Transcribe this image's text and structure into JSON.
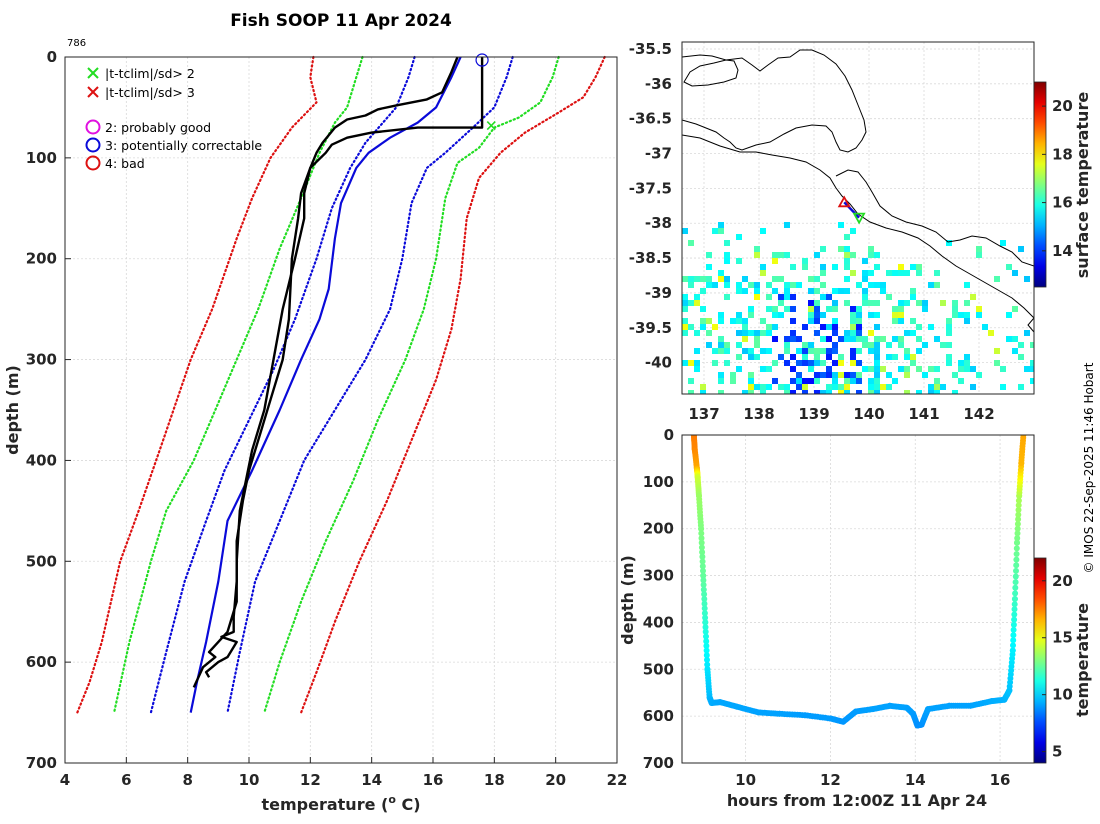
{
  "header": {
    "title": "Fish SOOP 11 Apr 2024",
    "profile_id": "786"
  },
  "credit": "© IMOS 22-Sep-2025 11:46 Hobart",
  "colors": {
    "profile": "#000000",
    "clim_mean": "#0a0ad9",
    "sd2": "#22dd22",
    "sd3": "#dd1111",
    "dotted_blue": "#0a0ad9"
  },
  "legend": {
    "x_green": "|t-tclim|/sd> 2",
    "x_red": "|t-tclim|/sd> 3",
    "q2": "2: probably good",
    "q3": "3: potentially correctable",
    "q4": "4: bad"
  },
  "chart_data": [
    {
      "type": "line",
      "id": "profile",
      "title": "Fish SOOP 11 Apr 2024",
      "xlabel": "temperature (o C)",
      "xlabel_base": "temperature (",
      "xlabel_sup": "o",
      "xlabel_tail": " C)",
      "ylabel": "depth (m)",
      "xlim": [
        4,
        22
      ],
      "ylim": [
        0,
        700
      ],
      "y_reversed": true,
      "x_ticks": [
        "4",
        "6",
        "8",
        "10",
        "12",
        "14",
        "16",
        "18",
        "20",
        "22"
      ],
      "y_ticks": [
        "0",
        "100",
        "200",
        "300",
        "400",
        "500",
        "600",
        "700"
      ],
      "series": [
        {
          "name": "sd3 lower",
          "style": "dotted",
          "color": "#dd1111",
          "points": [
            [
              12.1,
              0
            ],
            [
              12.0,
              20
            ],
            [
              12.2,
              45
            ],
            [
              11.4,
              70
            ],
            [
              10.7,
              100
            ],
            [
              10.1,
              140
            ],
            [
              9.6,
              180
            ],
            [
              8.8,
              250
            ],
            [
              8.1,
              300
            ],
            [
              7.2,
              380
            ],
            [
              6.4,
              450
            ],
            [
              5.8,
              500
            ],
            [
              5.2,
              580
            ],
            [
              4.8,
              620
            ],
            [
              4.4,
              650
            ]
          ]
        },
        {
          "name": "sd2 lower",
          "style": "dotted",
          "color": "#22dd22",
          "points": [
            [
              13.7,
              0
            ],
            [
              13.5,
              20
            ],
            [
              13.2,
              50
            ],
            [
              12.8,
              65
            ],
            [
              12.3,
              95
            ],
            [
              11.7,
              140
            ],
            [
              11.0,
              190
            ],
            [
              10.3,
              250
            ],
            [
              9.6,
              300
            ],
            [
              8.9,
              350
            ],
            [
              8.2,
              400
            ],
            [
              7.3,
              450
            ],
            [
              6.8,
              500
            ],
            [
              6.1,
              580
            ],
            [
              5.6,
              650
            ]
          ]
        },
        {
          "name": "sd1 lower",
          "style": "dotted",
          "color": "#0a0ad9",
          "points": [
            [
              15.4,
              0
            ],
            [
              15.2,
              20
            ],
            [
              14.8,
              50
            ],
            [
              13.8,
              85
            ],
            [
              13.3,
              110
            ],
            [
              12.7,
              150
            ],
            [
              12.2,
              200
            ],
            [
              11.5,
              260
            ],
            [
              10.8,
              310
            ],
            [
              10.0,
              360
            ],
            [
              9.2,
              410
            ],
            [
              8.6,
              460
            ],
            [
              7.9,
              520
            ],
            [
              7.3,
              590
            ],
            [
              6.8,
              650
            ]
          ]
        },
        {
          "name": "sd1 upper",
          "style": "dotted",
          "color": "#0a0ad9",
          "points": [
            [
              18.6,
              0
            ],
            [
              18.4,
              20
            ],
            [
              18.0,
              50
            ],
            [
              17.3,
              70
            ],
            [
              16.4,
              95
            ],
            [
              15.8,
              110
            ],
            [
              15.3,
              145
            ],
            [
              15.0,
              200
            ],
            [
              14.6,
              250
            ],
            [
              13.8,
              300
            ],
            [
              12.8,
              350
            ],
            [
              11.8,
              400
            ],
            [
              11.0,
              460
            ],
            [
              10.2,
              520
            ],
            [
              9.7,
              590
            ],
            [
              9.3,
              650
            ]
          ]
        },
        {
          "name": "sd2 upper",
          "style": "dotted",
          "color": "#22dd22",
          "points": [
            [
              20.1,
              0
            ],
            [
              19.9,
              20
            ],
            [
              19.5,
              45
            ],
            [
              18.8,
              60
            ],
            [
              18.0,
              70
            ],
            [
              17.5,
              90
            ],
            [
              16.8,
              105
            ],
            [
              16.4,
              140
            ],
            [
              16.1,
              200
            ],
            [
              15.7,
              250
            ],
            [
              15.1,
              300
            ],
            [
              14.2,
              360
            ],
            [
              13.4,
              420
            ],
            [
              12.5,
              480
            ],
            [
              11.7,
              540
            ],
            [
              11.0,
              600
            ],
            [
              10.5,
              650
            ]
          ]
        },
        {
          "name": "sd3 upper",
          "style": "dotted",
          "color": "#dd1111",
          "points": [
            [
              21.6,
              0
            ],
            [
              21.3,
              20
            ],
            [
              20.9,
              40
            ],
            [
              20.1,
              55
            ],
            [
              19.0,
              75
            ],
            [
              18.2,
              95
            ],
            [
              17.5,
              120
            ],
            [
              17.1,
              160
            ],
            [
              16.9,
              220
            ],
            [
              16.6,
              270
            ],
            [
              16.1,
              320
            ],
            [
              15.3,
              380
            ],
            [
              14.5,
              440
            ],
            [
              13.6,
              500
            ],
            [
              12.8,
              560
            ],
            [
              12.2,
              610
            ],
            [
              11.7,
              650
            ]
          ]
        },
        {
          "name": "climatology mean",
          "style": "solid",
          "color": "#0a0ad9",
          "width": 2.2,
          "points": [
            [
              16.9,
              0
            ],
            [
              16.6,
              20
            ],
            [
              16.1,
              50
            ],
            [
              15.5,
              65
            ],
            [
              14.6,
              80
            ],
            [
              13.9,
              95
            ],
            [
              13.5,
              110
            ],
            [
              13.0,
              145
            ],
            [
              12.8,
              180
            ],
            [
              12.6,
              230
            ],
            [
              12.3,
              260
            ],
            [
              11.7,
              300
            ],
            [
              11.0,
              350
            ],
            [
              10.1,
              410
            ],
            [
              9.3,
              460
            ],
            [
              9.0,
              520
            ],
            [
              8.6,
              580
            ],
            [
              8.3,
              620
            ],
            [
              8.1,
              650
            ]
          ]
        },
        {
          "name": "profile down",
          "style": "solid",
          "color": "#000000",
          "width": 2.4,
          "points": [
            [
              17.6,
              0
            ],
            [
              17.6,
              10
            ],
            [
              17.6,
              40
            ],
            [
              17.6,
              70
            ],
            [
              15.5,
              70
            ],
            [
              14.0,
              75
            ],
            [
              13.2,
              80
            ],
            [
              12.7,
              87
            ],
            [
              12.5,
              95
            ],
            [
              12.0,
              110
            ],
            [
              11.7,
              135
            ],
            [
              11.6,
              160
            ],
            [
              11.4,
              200
            ],
            [
              11.3,
              260
            ],
            [
              11.1,
              300
            ],
            [
              10.8,
              330
            ],
            [
              10.4,
              370
            ],
            [
              10.0,
              410
            ],
            [
              9.8,
              440
            ],
            [
              9.6,
              480
            ],
            [
              9.6,
              520
            ],
            [
              9.5,
              555
            ],
            [
              9.5,
              570
            ],
            [
              9.1,
              575
            ],
            [
              9.6,
              580
            ],
            [
              9.3,
              595
            ],
            [
              9.0,
              600
            ],
            [
              8.6,
              610
            ],
            [
              8.7,
              615
            ]
          ]
        },
        {
          "name": "profile up",
          "style": "solid",
          "color": "#000000",
          "width": 2.4,
          "points": [
            [
              16.8,
              0
            ],
            [
              16.6,
              15
            ],
            [
              16.3,
              35
            ],
            [
              15.8,
              42
            ],
            [
              14.8,
              48
            ],
            [
              14.2,
              52
            ],
            [
              13.8,
              58
            ],
            [
              13.2,
              62
            ],
            [
              12.8,
              70
            ],
            [
              12.4,
              85
            ],
            [
              12.2,
              95
            ],
            [
              12.0,
              110
            ],
            [
              11.8,
              135
            ],
            [
              11.8,
              160
            ],
            [
              11.5,
              200
            ],
            [
              11.1,
              250
            ],
            [
              10.8,
              300
            ],
            [
              10.5,
              350
            ],
            [
              10.1,
              390
            ],
            [
              9.9,
              420
            ],
            [
              9.7,
              450
            ],
            [
              9.6,
              500
            ],
            [
              9.6,
              540
            ],
            [
              9.3,
              570
            ],
            [
              8.7,
              590
            ],
            [
              8.9,
              595
            ],
            [
              8.5,
              605
            ],
            [
              8.2,
              625
            ]
          ]
        }
      ],
      "markers": [
        {
          "label": "3: potentially correctable",
          "x": 17.6,
          "y": 3,
          "shape": "circle",
          "color": "#0a0ad9"
        },
        {
          "label": "|t-tclim|/sd> 2",
          "x": 17.9,
          "y": 68,
          "shape": "x",
          "color": "#22dd22"
        }
      ]
    },
    {
      "type": "heatmap",
      "id": "map",
      "colorbar_label": "surface temperature",
      "clim": [
        12.5,
        21
      ],
      "colorbar_ticks": [
        "14",
        "16",
        "18",
        "20"
      ],
      "colorbar_tick_values": [
        14,
        16,
        18,
        20
      ],
      "xlim": [
        136.6,
        143.0
      ],
      "ylim": [
        -40.45,
        -35.4
      ],
      "x_ticks": [
        "137",
        "138",
        "139",
        "140",
        "141",
        "142"
      ],
      "x_tick_values": [
        137,
        138,
        139,
        140,
        141,
        142
      ],
      "y_ticks": [
        "-35.5",
        "-36",
        "-36.5",
        "-37",
        "-37.5",
        "-38",
        "-38.5",
        "-39",
        "-39.5",
        "-40"
      ],
      "y_tick_values": [
        -35.5,
        -36,
        -36.5,
        -37,
        -37.5,
        -38,
        -38.5,
        -39,
        -39.5,
        -40
      ],
      "track_start": {
        "lon": 139.55,
        "lat": -37.7,
        "shape": "triangle-up",
        "color": "#dd1111"
      },
      "track_end": {
        "lon": 139.82,
        "lat": -37.92,
        "shape": "triangle-down",
        "color": "#22dd22"
      }
    },
    {
      "type": "scatter",
      "id": "depth_time",
      "xlabel": "hours from 12:00Z 11 Apr 24",
      "ylabel": "depth (m)",
      "colorbar_label": "temperature",
      "clim": [
        4,
        22
      ],
      "xlim": [
        8.5,
        16.8
      ],
      "ylim": [
        0,
        700
      ],
      "x_ticks": [
        "10",
        "12",
        "14",
        "16"
      ],
      "x_tick_values": [
        10,
        12,
        14,
        16
      ],
      "y_ticks": [
        "0",
        "100",
        "200",
        "300",
        "400",
        "500",
        "600",
        "700"
      ],
      "colorbar_ticks": [
        "5",
        "10",
        "15",
        "20"
      ],
      "colorbar_tick_values": [
        5,
        10,
        15,
        20
      ],
      "path": [
        [
          8.78,
          0,
          17.6
        ],
        [
          8.8,
          30,
          17.4
        ],
        [
          8.85,
          70,
          16.8
        ],
        [
          8.87,
          90,
          14.5
        ],
        [
          8.9,
          130,
          13.5
        ],
        [
          8.95,
          200,
          13.0
        ],
        [
          9.0,
          300,
          12.5
        ],
        [
          9.05,
          400,
          11.5
        ],
        [
          9.1,
          500,
          10.3
        ],
        [
          9.15,
          560,
          9.6
        ],
        [
          9.2,
          572,
          9.3
        ],
        [
          9.4,
          570,
          9.2
        ],
        [
          9.8,
          580,
          9.2
        ],
        [
          10.3,
          592,
          9.1
        ],
        [
          10.8,
          595,
          9.1
        ],
        [
          11.4,
          598,
          9.0
        ],
        [
          12.0,
          605,
          9.0
        ],
        [
          12.3,
          612,
          8.9
        ],
        [
          12.6,
          590,
          9.0
        ],
        [
          13.0,
          585,
          9.1
        ],
        [
          13.4,
          578,
          9.1
        ],
        [
          13.8,
          582,
          9.1
        ],
        [
          13.95,
          595,
          9.0
        ],
        [
          14.05,
          620,
          8.8
        ],
        [
          14.15,
          618,
          8.8
        ],
        [
          14.3,
          585,
          9.1
        ],
        [
          14.8,
          578,
          9.1
        ],
        [
          15.3,
          578,
          9.1
        ],
        [
          15.8,
          568,
          9.3
        ],
        [
          16.1,
          565,
          9.4
        ],
        [
          16.22,
          545,
          9.7
        ],
        [
          16.3,
          460,
          10.5
        ],
        [
          16.35,
          350,
          11.8
        ],
        [
          16.4,
          230,
          12.8
        ],
        [
          16.45,
          130,
          13.8
        ],
        [
          16.5,
          60,
          16.5
        ],
        [
          16.55,
          0,
          16.8
        ]
      ]
    }
  ]
}
